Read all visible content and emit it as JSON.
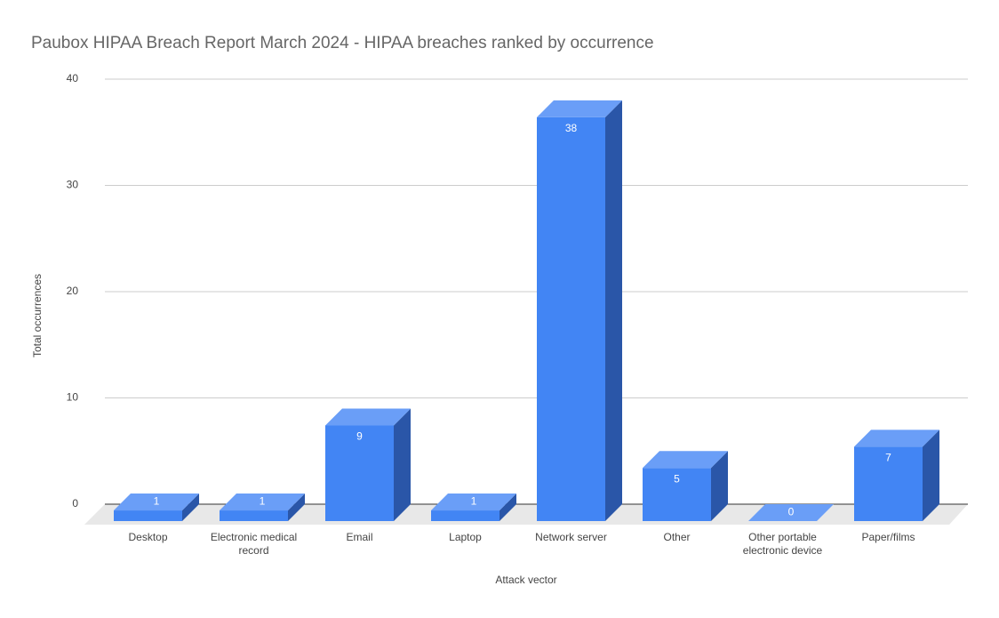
{
  "chart_data": {
    "type": "bar3d",
    "title": "Paubox HIPAA Breach Report March 2024 - HIPAA breaches ranked by occurrence",
    "x_label": "Attack vector",
    "y_label": "Total occurrences",
    "categories": [
      "Desktop",
      "Electronic medical record",
      "Email",
      "Laptop",
      "Network server",
      "Other",
      "Other portable electronic device",
      "Paper/films"
    ],
    "values": [
      1,
      1,
      9,
      1,
      38,
      5,
      0,
      7
    ],
    "color": "#4285f4",
    "ylim": [
      0,
      40
    ],
    "yticks": [
      0,
      10,
      20,
      30,
      40
    ],
    "grid": true
  }
}
